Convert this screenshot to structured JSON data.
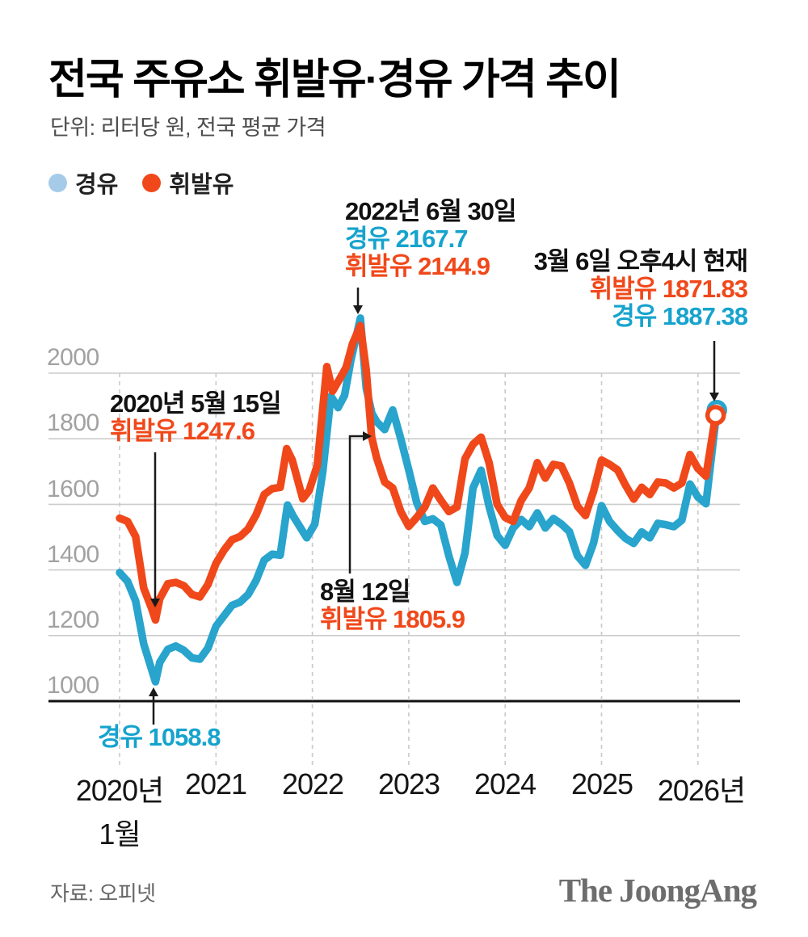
{
  "header": {
    "title": "전국 주유소 휘발유·경유 가격 추이",
    "subtitle": "단위: 리터당 원, 전국 평균 가격"
  },
  "legend": {
    "diesel_label": "경유",
    "gasoline_label": "휘발유"
  },
  "colors": {
    "gasoline": "#f0481a",
    "diesel": "#28a4cd",
    "legend_diesel_dot": "#a6cbe9",
    "annotation_cyan": "#16a3cd",
    "grid": "#cccccc",
    "dashed_grid": "#c9c9c9",
    "axis": "#111111",
    "y_tick_label": "#a1a1a1"
  },
  "chart_data": {
    "type": "line",
    "title": "전국 주유소 휘발유·경유 가격 추이",
    "unit": "리터당 원, 전국 평균 가격",
    "x_axis": "months since 2020-01 (0 = 2020년 1월)",
    "x_tick_labels": [
      "2020년",
      "2021",
      "2022",
      "2023",
      "2024",
      "2025",
      "2026년"
    ],
    "x_tick_sublabel": "1월",
    "y_ticks": [
      2000,
      1800,
      1600,
      1400,
      1200,
      1000
    ],
    "ylim": [
      1000,
      2200
    ],
    "grid": true,
    "legend_position": "top-left",
    "series": [
      {
        "name": "경유",
        "color": "#28a4cd",
        "points": [
          [
            0,
            1392
          ],
          [
            1,
            1365
          ],
          [
            2,
            1305
          ],
          [
            3,
            1175
          ],
          [
            4,
            1095
          ],
          [
            4.47,
            1058.8
          ],
          [
            5,
            1118
          ],
          [
            6,
            1158
          ],
          [
            7,
            1168
          ],
          [
            8,
            1155
          ],
          [
            9,
            1132
          ],
          [
            10,
            1128
          ],
          [
            11,
            1162
          ],
          [
            12,
            1228
          ],
          [
            13,
            1260
          ],
          [
            14,
            1292
          ],
          [
            15,
            1302
          ],
          [
            16,
            1325
          ],
          [
            17,
            1368
          ],
          [
            18,
            1430
          ],
          [
            19,
            1448
          ],
          [
            20,
            1445
          ],
          [
            20.9,
            1598
          ],
          [
            21.6,
            1565
          ],
          [
            23.3,
            1498
          ],
          [
            24.3,
            1540
          ],
          [
            25.3,
            1700
          ],
          [
            26.3,
            1930
          ],
          [
            27.2,
            1895
          ],
          [
            28,
            1932
          ],
          [
            28.8,
            2040
          ],
          [
            29.97,
            2167.7
          ],
          [
            30.7,
            1955
          ],
          [
            31.4,
            1878
          ],
          [
            32,
            1852
          ],
          [
            33,
            1828
          ],
          [
            34,
            1888
          ],
          [
            35,
            1800
          ],
          [
            36,
            1705
          ],
          [
            37,
            1605
          ],
          [
            38,
            1548
          ],
          [
            39,
            1556
          ],
          [
            40,
            1537
          ],
          [
            41,
            1442
          ],
          [
            42,
            1362
          ],
          [
            43,
            1452
          ],
          [
            44,
            1650
          ],
          [
            45,
            1704
          ],
          [
            46,
            1594
          ],
          [
            47,
            1505
          ],
          [
            48,
            1475
          ],
          [
            49,
            1528
          ],
          [
            50,
            1554
          ],
          [
            51,
            1532
          ],
          [
            52,
            1574
          ],
          [
            53,
            1528
          ],
          [
            54,
            1557
          ],
          [
            55,
            1540
          ],
          [
            56,
            1517
          ],
          [
            57,
            1443
          ],
          [
            58,
            1414
          ],
          [
            59,
            1482
          ],
          [
            60,
            1596
          ],
          [
            61,
            1548
          ],
          [
            62,
            1520
          ],
          [
            63,
            1496
          ],
          [
            64,
            1481
          ],
          [
            65,
            1516
          ],
          [
            66,
            1498
          ],
          [
            67,
            1542
          ],
          [
            68,
            1538
          ],
          [
            69,
            1532
          ],
          [
            70,
            1552
          ],
          [
            71,
            1662
          ],
          [
            72,
            1622
          ],
          [
            73,
            1602
          ],
          [
            74.35,
            1887.38
          ]
        ]
      },
      {
        "name": "휘발유",
        "color": "#f0481a",
        "points": [
          [
            0,
            1558
          ],
          [
            1,
            1548
          ],
          [
            2,
            1502
          ],
          [
            3,
            1345
          ],
          [
            4,
            1282
          ],
          [
            4.47,
            1247.6
          ],
          [
            5,
            1312
          ],
          [
            6,
            1358
          ],
          [
            7,
            1362
          ],
          [
            8,
            1352
          ],
          [
            9,
            1325
          ],
          [
            10,
            1318
          ],
          [
            11,
            1356
          ],
          [
            12,
            1420
          ],
          [
            13,
            1460
          ],
          [
            14,
            1492
          ],
          [
            15,
            1502
          ],
          [
            16,
            1525
          ],
          [
            17,
            1568
          ],
          [
            18,
            1630
          ],
          [
            19,
            1648
          ],
          [
            20,
            1652
          ],
          [
            20.8,
            1770
          ],
          [
            21.5,
            1735
          ],
          [
            22.8,
            1617
          ],
          [
            23.6,
            1642
          ],
          [
            24.6,
            1718
          ],
          [
            25.8,
            2020
          ],
          [
            26.5,
            1945
          ],
          [
            27.3,
            1978
          ],
          [
            28.2,
            2018
          ],
          [
            29,
            2090
          ],
          [
            29.97,
            2144.9
          ],
          [
            30.7,
            2010
          ],
          [
            31.37,
            1805.9
          ],
          [
            32,
            1742
          ],
          [
            33,
            1668
          ],
          [
            34,
            1650
          ],
          [
            35,
            1578
          ],
          [
            36,
            1533
          ],
          [
            37,
            1560
          ],
          [
            38,
            1592
          ],
          [
            39,
            1650
          ],
          [
            40,
            1612
          ],
          [
            41,
            1578
          ],
          [
            42,
            1592
          ],
          [
            43,
            1739
          ],
          [
            44,
            1783
          ],
          [
            45,
            1805
          ],
          [
            46,
            1727
          ],
          [
            47,
            1600
          ],
          [
            48,
            1560
          ],
          [
            49,
            1548
          ],
          [
            50,
            1612
          ],
          [
            51,
            1650
          ],
          [
            52,
            1727
          ],
          [
            53,
            1680
          ],
          [
            54,
            1722
          ],
          [
            55,
            1717
          ],
          [
            56,
            1665
          ],
          [
            57,
            1594
          ],
          [
            58,
            1566
          ],
          [
            59,
            1640
          ],
          [
            60,
            1735
          ],
          [
            61,
            1722
          ],
          [
            62,
            1705
          ],
          [
            63,
            1658
          ],
          [
            64,
            1616
          ],
          [
            65,
            1652
          ],
          [
            66,
            1630
          ],
          [
            67,
            1668
          ],
          [
            68,
            1665
          ],
          [
            69,
            1650
          ],
          [
            70,
            1665
          ],
          [
            71,
            1752
          ],
          [
            72,
            1709
          ],
          [
            73,
            1686
          ],
          [
            74.2,
            1871.83
          ]
        ]
      }
    ]
  },
  "annotations": {
    "peak2022": {
      "date": "2022년 6월 30일",
      "row1": "경유 2167.7",
      "row2": "휘발유 2144.9"
    },
    "current": {
      "date": "3월 6일 오후4시 현재",
      "row1": "휘발유 1871.83",
      "row2": "경유 1887.38"
    },
    "low2020": {
      "date": "2020년 5월 15일",
      "row1": "휘발유 1247.6"
    },
    "aug2022": {
      "date": "8월 12일",
      "row1": "휘발유 1805.9"
    },
    "diesel_low": {
      "row1": "경유 1058.8"
    }
  },
  "footer": {
    "source": "자료: 오피넷",
    "brand": "The JoongAng"
  }
}
